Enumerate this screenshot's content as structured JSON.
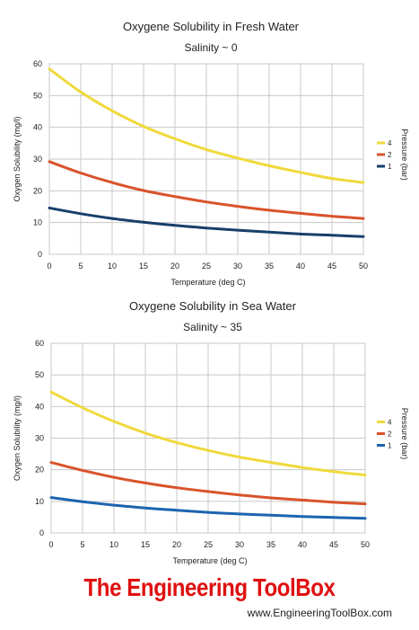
{
  "chart_data": [
    {
      "type": "line",
      "title": "Oxygene Solubility in Fresh Water",
      "subtitle": "Salinity ~ 0",
      "xlabel": "Temperature (deg C)",
      "ylabel": "Oxygen Solubility (mg/l)",
      "xlim": [
        0,
        50
      ],
      "ylim": [
        0,
        60
      ],
      "x_ticks": [
        0,
        5,
        10,
        15,
        20,
        25,
        30,
        35,
        40,
        45,
        50
      ],
      "y_ticks": [
        0,
        10,
        20,
        30,
        40,
        50,
        60
      ],
      "grid": true,
      "legend_title": "Pressure (bar)",
      "legend_position": "right",
      "x": [
        0,
        5,
        10,
        15,
        20,
        25,
        30,
        35,
        40,
        45,
        50
      ],
      "series": [
        {
          "name": "4",
          "color": "#f0d93c",
          "values": [
            58.4,
            51.1,
            45.2,
            40.3,
            36.4,
            33.0,
            30.3,
            27.9,
            25.8,
            23.9,
            22.6
          ]
        },
        {
          "name": "2",
          "color": "#d9532b",
          "values": [
            29.2,
            25.6,
            22.6,
            20.1,
            18.2,
            16.5,
            15.1,
            13.9,
            12.9,
            12.0,
            11.3
          ]
        },
        {
          "name": "1",
          "color": "#173f6b",
          "values": [
            14.6,
            12.8,
            11.3,
            10.1,
            9.1,
            8.3,
            7.6,
            7.0,
            6.4,
            6.0,
            5.6
          ]
        }
      ]
    },
    {
      "type": "line",
      "title": "Oxygene Solubility in Sea Water",
      "subtitle": "Salinity ~ 35",
      "xlabel": "Temperature (deg C)",
      "ylabel": "Oxygen Solubility (mg/l)",
      "xlim": [
        0,
        50
      ],
      "ylim": [
        0,
        60
      ],
      "x_ticks": [
        0,
        5,
        10,
        15,
        20,
        25,
        30,
        35,
        40,
        45,
        50
      ],
      "y_ticks": [
        0,
        10,
        20,
        30,
        40,
        50,
        60
      ],
      "grid": true,
      "legend_title": "Pressure (bar)",
      "legend_position": "right",
      "x": [
        0,
        5,
        10,
        15,
        20,
        25,
        30,
        35,
        40,
        45,
        50
      ],
      "series": [
        {
          "name": "4",
          "color": "#f0d93c",
          "values": [
            44.6,
            39.6,
            35.3,
            31.6,
            28.6,
            26.1,
            24.0,
            22.3,
            20.7,
            19.4,
            18.3
          ]
        },
        {
          "name": "2",
          "color": "#d9532b",
          "values": [
            22.3,
            19.8,
            17.6,
            15.8,
            14.3,
            13.1,
            12.0,
            11.1,
            10.4,
            9.7,
            9.2
          ]
        },
        {
          "name": "1",
          "color": "#1c64b0",
          "values": [
            11.2,
            9.9,
            8.8,
            7.9,
            7.2,
            6.5,
            6.0,
            5.6,
            5.2,
            4.9,
            4.6
          ]
        }
      ]
    }
  ],
  "footer": {
    "brand": "The Engineering ToolBox",
    "url": "www.EngineeringToolBox.com"
  }
}
